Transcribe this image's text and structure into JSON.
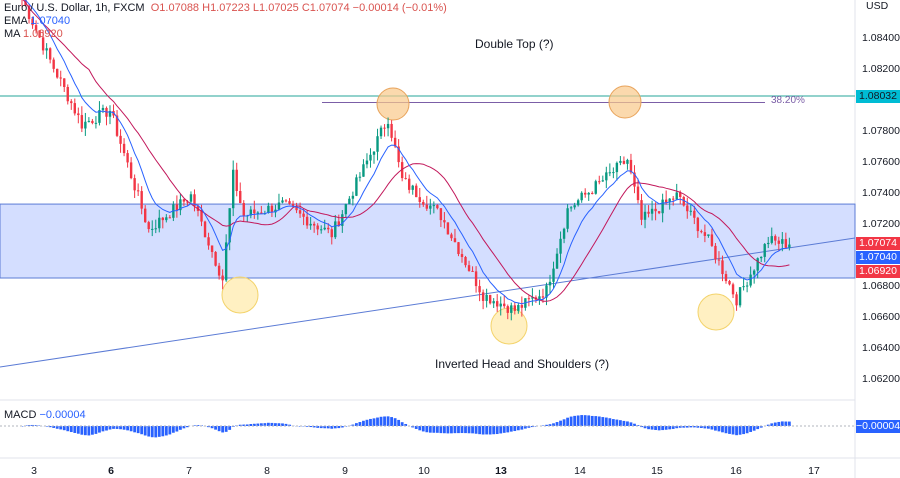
{
  "header": {
    "symbol": "Euro / U.S. Dollar, 1h, FXCM",
    "open": "O1.07088",
    "high": "H1.07223",
    "low": "L1.07025",
    "close": "C1.07074",
    "change": "−0.00014 (−0.01%)"
  },
  "indicators": {
    "ema_label": "EMA",
    "ema_value": "1.07040",
    "ma_label": "MA",
    "ma_value": "1.06920",
    "macd_label": "MACD",
    "macd_value": "−0.00004",
    "macd_tag": "−0.00004"
  },
  "price_axis": {
    "currency": "USD",
    "ticks": [
      "1.08400",
      "1.08200",
      "1.07800",
      "1.07600",
      "1.07400",
      "1.07200",
      "1.06800",
      "1.06600",
      "1.06400",
      "1.06200"
    ],
    "tags": {
      "resistance": "1.08032",
      "close": "1.07074",
      "ema": "1.07040",
      "ma": "1.06920"
    }
  },
  "time_axis": [
    "3",
    "6",
    "7",
    "8",
    "9",
    "10",
    "13",
    "14",
    "15",
    "16",
    "17"
  ],
  "annotations": {
    "double_top": "Double Top (?)",
    "ihs": "Inverted Head and Shoulders (?)",
    "fib": "38.20%"
  },
  "colors": {
    "up": "#089981",
    "down": "#f23645",
    "ema": "#2962ff",
    "ma": "#c2185b",
    "zone": "#c9d6ff",
    "resistance": "#26a69a",
    "macd": "#2962ff",
    "circle": "#ffe9a8"
  },
  "chart_data": {
    "type": "candlestick",
    "ylim": [
      1.0608,
      1.0865
    ],
    "zone": [
      1.06858,
      1.07335
    ],
    "resistance": 1.08032,
    "fib_level": 1.0799,
    "price_path": [
      [
        0,
        1.0866
      ],
      [
        8,
        1.0826
      ],
      [
        17,
        1.0785
      ],
      [
        25,
        1.0794
      ],
      [
        36,
        1.0717
      ],
      [
        48,
        1.0739
      ],
      [
        57,
        1.0685
      ],
      [
        60,
        1.0752
      ],
      [
        63,
        1.0726
      ],
      [
        74,
        1.0733
      ],
      [
        88,
        1.0714
      ],
      [
        104,
        1.0789
      ],
      [
        108,
        1.0749
      ],
      [
        119,
        1.0726
      ],
      [
        131,
        1.0675
      ],
      [
        140,
        1.0665
      ],
      [
        149,
        1.0678
      ],
      [
        155,
        1.073
      ],
      [
        172,
        1.0762
      ],
      [
        176,
        1.0723
      ],
      [
        186,
        1.0739
      ],
      [
        195,
        1.071
      ],
      [
        203,
        1.0672
      ],
      [
        212,
        1.071
      ],
      [
        218,
        1.07074
      ]
    ]
  }
}
